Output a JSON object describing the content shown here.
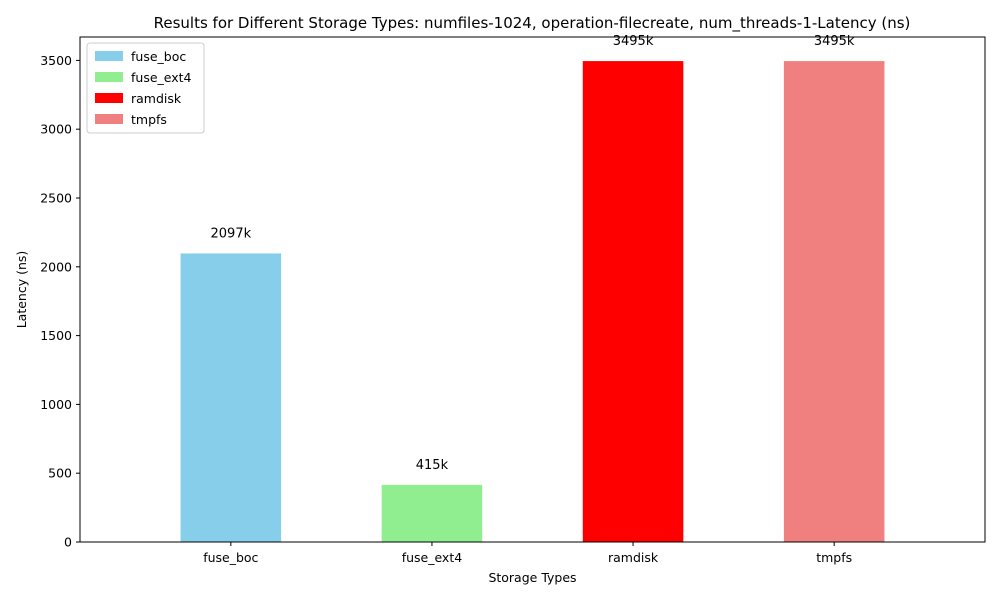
{
  "chart_data": {
    "type": "bar",
    "title": "Results for Different Storage Types: numfiles-1024, operation-filecreate, num_threads-1-Latency (ns)",
    "xlabel": "Storage Types",
    "ylabel": "Latency (ns)",
    "categories": [
      "fuse_boc",
      "fuse_ext4",
      "ramdisk",
      "tmpfs"
    ],
    "values": [
      2097,
      415,
      3495,
      3495
    ],
    "value_labels": [
      "2097k",
      "415k",
      "3495k",
      "3495k"
    ],
    "colors": [
      "#87CEEB",
      "#90EE90",
      "#FF0000",
      "#F08080"
    ],
    "yticks": [
      0,
      500,
      1000,
      1500,
      2000,
      2500,
      3000,
      3500
    ],
    "ylim": [
      0,
      3670
    ],
    "grid": false,
    "legend": {
      "placement": "top-left",
      "entries": [
        "fuse_boc",
        "fuse_ext4",
        "ramdisk",
        "tmpfs"
      ]
    }
  }
}
